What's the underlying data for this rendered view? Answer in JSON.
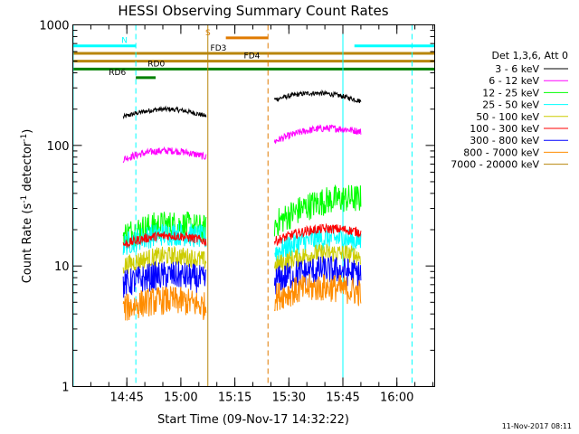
{
  "chart_data": {
    "type": "line",
    "title": "HESSI Observing Summary Count Rates",
    "xlabel": "Start Time (09-Nov-17 14:32:22)",
    "ylabel_main": "Count Rate (s",
    "ylabel_sup1": "-1",
    "ylabel_mid": " detector",
    "ylabel_sup2": "-1",
    "ylabel_end": ")",
    "yscale": "log",
    "ylim": [
      1,
      1000
    ],
    "xlim_minutes": [
      0,
      100.5
    ],
    "x_ticks": [
      {
        "t": 15.0,
        "label": "14:45"
      },
      {
        "t": 30.0,
        "label": "15:00"
      },
      {
        "t": 45.0,
        "label": "15:15"
      },
      {
        "t": 60.0,
        "label": "15:30"
      },
      {
        "t": 75.0,
        "label": "15:45"
      },
      {
        "t": 90.0,
        "label": "16:00"
      }
    ],
    "y_ticks": [
      {
        "v": 1,
        "label": "1"
      },
      {
        "v": 10,
        "label": "10"
      },
      {
        "v": 100,
        "label": "100"
      },
      {
        "v": 1000,
        "label": "1000"
      }
    ],
    "legend_title": "Det 1,3,6, Att 0",
    "series": [
      {
        "name": "3 - 6 keV",
        "color": "#000000",
        "segments": [
          {
            "t0": 14,
            "t1": 37,
            "v0": 172,
            "v1": 175
          },
          {
            "t0": 56,
            "t1": 80,
            "v0": 240,
            "v1": 232
          }
        ],
        "noise": 0.02
      },
      {
        "name": "6 - 12 keV",
        "color": "#ff00ff",
        "segments": [
          {
            "t0": 14,
            "t1": 37,
            "v0": 77,
            "v1": 80
          },
          {
            "t0": 56,
            "t1": 80,
            "v0": 108,
            "v1": 130
          }
        ],
        "noise": 0.03
      },
      {
        "name": "12 - 25 keV",
        "color": "#00ff00",
        "segments": [
          {
            "t0": 14,
            "t1": 37,
            "v0": 18,
            "v1": 20
          },
          {
            "t0": 56,
            "t1": 80,
            "v0": 22,
            "v1": 36
          }
        ],
        "noise": 0.12
      },
      {
        "name": "25 - 50 keV",
        "color": "#00ffff",
        "segments": [
          {
            "t0": 14,
            "t1": 37,
            "v0": 15,
            "v1": 17
          },
          {
            "t0": 56,
            "t1": 80,
            "v0": 13,
            "v1": 16
          }
        ],
        "noise": 0.1
      },
      {
        "name": "50 - 100 keV",
        "color": "#cccc00",
        "segments": [
          {
            "t0": 14,
            "t1": 37,
            "v0": 10,
            "v1": 11
          },
          {
            "t0": 56,
            "t1": 80,
            "v0": 10,
            "v1": 12
          }
        ],
        "noise": 0.08
      },
      {
        "name": "100 - 300 keV",
        "color": "#ff0000",
        "segments": [
          {
            "t0": 14,
            "t1": 37,
            "v0": 15,
            "v1": 16
          },
          {
            "t0": 56,
            "t1": 80,
            "v0": 16,
            "v1": 19
          }
        ],
        "noise": 0.04
      },
      {
        "name": "300 - 800 keV",
        "color": "#0000ff",
        "segments": [
          {
            "t0": 14,
            "t1": 37,
            "v0": 7,
            "v1": 7.5
          },
          {
            "t0": 56,
            "t1": 80,
            "v0": 7.5,
            "v1": 8.5
          }
        ],
        "noise": 0.12
      },
      {
        "name": "800 - 7000 keV",
        "color": "#ff8c00",
        "segments": [
          {
            "t0": 14,
            "t1": 37,
            "v0": 4.4,
            "v1": 4.6
          },
          {
            "t0": 56,
            "t1": 80,
            "v0": 5.5,
            "v1": 6
          }
        ],
        "noise": 0.12
      },
      {
        "name": "7000 - 20000 keV",
        "color": "#b8860b",
        "segments": [],
        "noise": 0
      }
    ],
    "flag_bars": [
      {
        "label": "N",
        "color": "#00ffff",
        "label_t": 13.5,
        "ranges": [
          [
            0,
            17.5
          ],
          [
            78.2,
            100.5
          ]
        ],
        "v": 670
      },
      {
        "label": "S",
        "color": "#e07a00",
        "label_t": 36.8,
        "ranges": [
          [
            42.5,
            54.2
          ]
        ],
        "v": 780
      },
      {
        "label": "FD3",
        "color": "#b8860b",
        "label_t": 38.2,
        "ranges": [
          [
            0,
            100.5
          ]
        ],
        "v": 580
      },
      {
        "label": "FD4",
        "color": "#b8860b",
        "label_t": 47.5,
        "ranges": [
          [
            0,
            100.5
          ]
        ],
        "v": 500
      },
      {
        "label": "RD0",
        "color": "#008000",
        "label_t": 20.8,
        "ranges": [
          [
            0,
            100.5
          ]
        ],
        "v": 430
      },
      {
        "label": "RD6",
        "color": "#008000",
        "label_t": 10.0,
        "ranges": [
          [
            17.5,
            23.0
          ]
        ],
        "v": 365
      }
    ],
    "vertical_lines": [
      {
        "t": 0.1,
        "color": "#00ffff",
        "dashed": false
      },
      {
        "t": 17.5,
        "color": "#00ffff",
        "dashed": true
      },
      {
        "t": 37.5,
        "color": "#b8860b",
        "dashed": false
      },
      {
        "t": 54.2,
        "color": "#e07a00",
        "dashed": true
      },
      {
        "t": 75.0,
        "color": "#00ffff",
        "dashed": false
      },
      {
        "t": 94.2,
        "color": "#00ffff",
        "dashed": true
      }
    ],
    "footer_date": "11-Nov-2017 08:11"
  }
}
